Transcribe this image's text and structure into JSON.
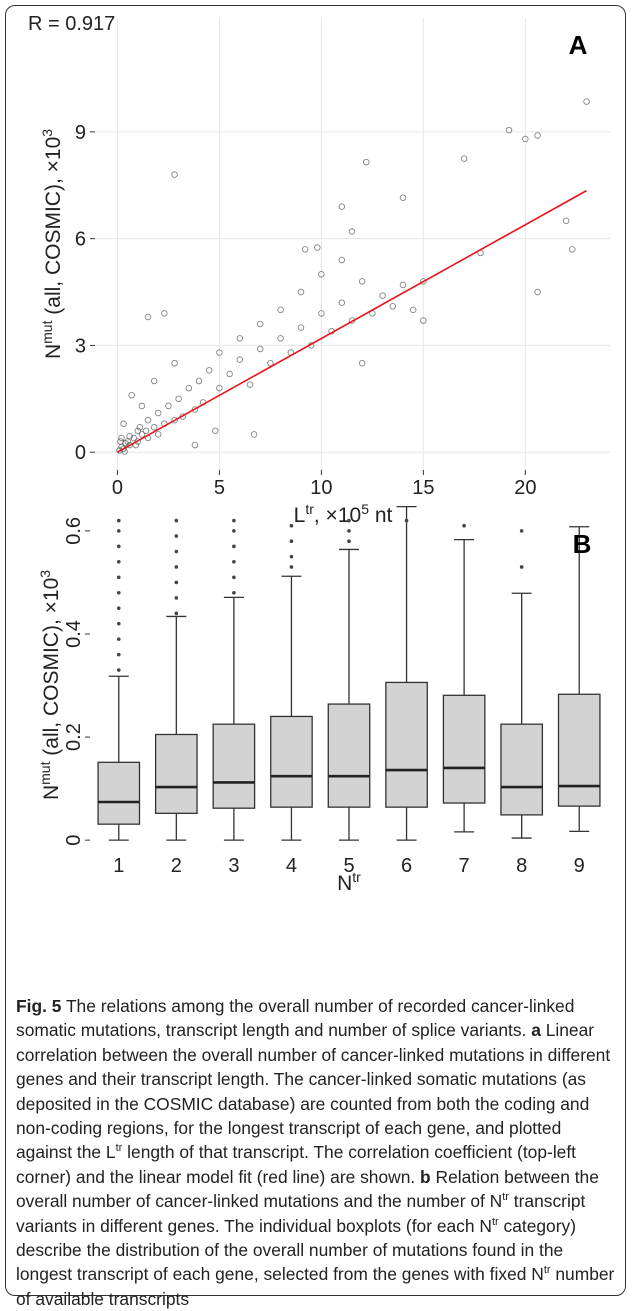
{
  "chart_data": [
    {
      "type": "scatter",
      "annotation": "R = 0.917",
      "panel_label": "A",
      "x_label": [
        {
          "text": "L"
        },
        {
          "text": "tr",
          "sup": true
        },
        {
          "text": ", ×10"
        },
        {
          "text": "5",
          "sup": true
        },
        {
          "text": " nt"
        }
      ],
      "y_label": [
        {
          "text": "N"
        },
        {
          "text": "mut",
          "sup": true
        },
        {
          "text": " (all, COSMIC), ×10"
        },
        {
          "text": "3",
          "sup": true
        }
      ],
      "x": [
        0.1,
        0.2,
        0.3,
        0.5,
        0.6,
        0.8,
        1,
        1,
        1.2,
        1.5,
        1.5,
        1.8,
        2,
        2,
        2.3,
        2.5,
        2.8,
        3,
        3.2,
        3.5,
        3.8,
        4,
        4.2,
        4.5,
        5,
        5,
        5.5,
        6,
        6,
        6.5,
        7,
        7,
        7.5,
        8,
        8,
        8.5,
        9,
        9,
        9.5,
        10,
        10,
        10.5,
        11,
        11,
        11.5,
        12,
        12,
        12.5,
        13,
        13.5,
        14,
        14.5,
        15,
        15,
        0.7,
        1.5,
        2.3,
        3.8,
        4.8,
        6.7,
        0.3,
        0.2,
        1.2,
        1.8,
        2.8,
        9.2,
        2.8,
        19.2,
        20,
        20.6,
        23,
        17,
        12.2,
        11,
        14,
        22,
        22.3,
        20.6,
        17.8,
        9.8,
        11.5,
        0.4,
        0.6,
        0.9,
        1.1,
        1.4,
        0.15,
        0.35
      ],
      "values": [
        0.05,
        0.15,
        0.1,
        0.3,
        0.2,
        0.4,
        0.3,
        0.6,
        0.5,
        0.4,
        0.9,
        0.7,
        0.5,
        1.1,
        0.8,
        1.3,
        0.9,
        1.5,
        1,
        1.8,
        1.2,
        2,
        1.4,
        2.3,
        1.8,
        2.8,
        2.2,
        2.6,
        3.2,
        1.9,
        2.9,
        3.6,
        2.5,
        3.2,
        4,
        2.8,
        3.5,
        4.5,
        3,
        3.9,
        5,
        3.4,
        4.2,
        5.4,
        3.7,
        4.8,
        2.5,
        3.9,
        4.4,
        4.1,
        4.7,
        4,
        4.8,
        3.7,
        1.6,
        3.8,
        3.9,
        0.2,
        0.6,
        0.5,
        0.8,
        0.4,
        1.3,
        2,
        2.5,
        5.7,
        7.8,
        9.05,
        8.8,
        8.9,
        9.85,
        8.25,
        8.15,
        6.9,
        7.15,
        6.5,
        5.7,
        4.5,
        5.6,
        5.75,
        6.2,
        0.25,
        0.45,
        0.2,
        0.7,
        0.6,
        0.3,
        0.02
      ],
      "color": "#333333",
      "fit": {
        "type": "line",
        "color": "#e8141c",
        "x": [
          0,
          23
        ],
        "values": [
          0,
          7.35
        ]
      },
      "xlim": [
        -1.1,
        24.2
      ],
      "ylim": [
        -0.5,
        12.2
      ],
      "xticks": [
        0,
        5,
        10,
        15,
        20
      ],
      "yticks": [
        0,
        3,
        6,
        9
      ],
      "grid": true
    },
    {
      "type": "box",
      "panel_label": "B",
      "x_label": [
        {
          "text": "N"
        },
        {
          "text": "tr",
          "sup": true
        }
      ],
      "y_label": [
        {
          "text": "N"
        },
        {
          "text": "mut",
          "sup": true
        },
        {
          "text": " (all, COSMIC), ×10"
        },
        {
          "text": "3",
          "sup": true
        }
      ],
      "categories": [
        "1",
        "2",
        "3",
        "4",
        "5",
        "6",
        "7",
        "8",
        "9"
      ],
      "whisker_low": [
        0,
        0,
        0,
        0,
        0,
        0,
        0.016,
        0.004,
        0.017
      ],
      "q1": [
        0.031,
        0.052,
        0.062,
        0.064,
        0.064,
        0.064,
        0.072,
        0.049,
        0.066
      ],
      "median": [
        0.074,
        0.103,
        0.112,
        0.124,
        0.124,
        0.136,
        0.14,
        0.103,
        0.105
      ],
      "q3": [
        0.151,
        0.205,
        0.225,
        0.24,
        0.264,
        0.306,
        0.281,
        0.225,
        0.283
      ],
      "whisker_high": [
        0.318,
        0.434,
        0.471,
        0.512,
        0.564,
        0.647,
        0.583,
        0.479,
        0.608
      ],
      "outliers": [
        [
          0.33,
          0.36,
          0.39,
          0.42,
          0.45,
          0.48,
          0.51,
          0.54,
          0.57,
          0.6,
          0.62
        ],
        [
          0.44,
          0.47,
          0.5,
          0.53,
          0.56,
          0.59,
          0.62
        ],
        [
          0.48,
          0.51,
          0.54,
          0.57,
          0.6,
          0.62
        ],
        [
          0.53,
          0.55,
          0.58,
          0.61
        ],
        [
          0.58,
          0.6,
          0.62
        ],
        [
          0.62
        ],
        [
          0.61
        ],
        [
          0.53,
          0.6
        ],
        []
      ],
      "color": "#d3d3d3",
      "ylim": [
        -0.023,
        0.625
      ],
      "yticks": [
        0,
        0.2,
        0.4,
        0.6
      ]
    }
  ],
  "caption": [
    {
      "text": "Fig. 5",
      "bold": true
    },
    {
      "text": " The relations among the overall number of recorded cancer-linked somatic mutations, transcript length and number of splice variants. "
    },
    {
      "text": "a",
      "bold": true
    },
    {
      "text": " Linear correlation between the overall number of cancer-linked mutations in different genes and their transcript length. The cancer-linked somatic mutations (as deposited in the COSMIC database) are counted from both the coding and non-coding regions, for the longest transcript of each gene, and plotted against the L"
    },
    {
      "text": "tr",
      "sup": true
    },
    {
      "text": " length of that transcript. The correlation coefficient (top-left corner) and the linear model fit (red line) are shown. "
    },
    {
      "text": "b",
      "bold": true
    },
    {
      "text": " Relation between the overall number of cancer-linked mutations and the number of N"
    },
    {
      "text": "tr",
      "sup": true
    },
    {
      "text": " transcript variants in different genes. The individual boxplots (for each N"
    },
    {
      "text": "tr",
      "sup": true
    },
    {
      "text": " category) describe the distribution of the overall number of mutations found in the longest transcript of each gene, selected from the genes with fixed N"
    },
    {
      "text": "tr",
      "sup": true
    },
    {
      "text": " number of available transcripts"
    }
  ]
}
